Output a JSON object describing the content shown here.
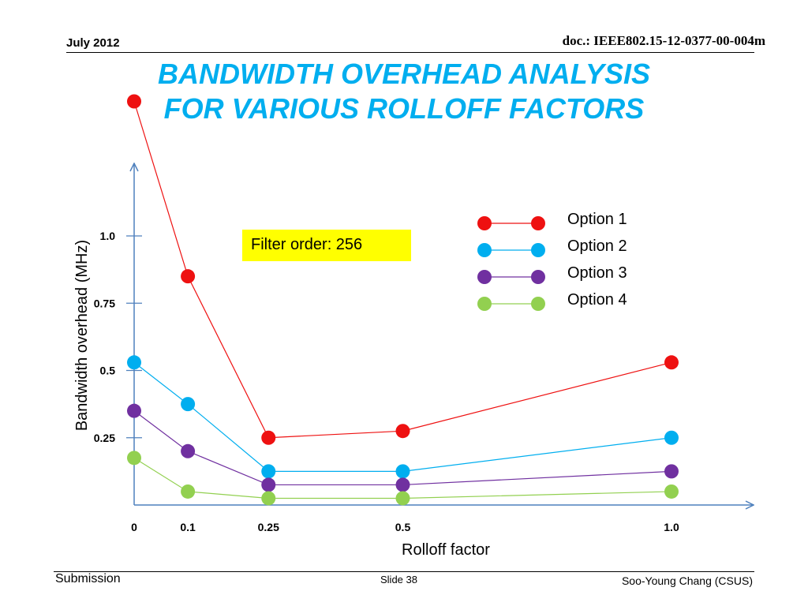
{
  "header": {
    "date": "July 2012",
    "doc_id": "doc.: IEEE802.15-12-0377-00-004m"
  },
  "title": {
    "line1": "BANDWIDTH OVERHEAD ANALYSIS",
    "line2": "FOR VARIOUS ROLLOFF FACTORS",
    "color": "#00AEEF"
  },
  "annotation": {
    "text": "Filter order: 256",
    "background": "#FFFF00"
  },
  "footer": {
    "left": "Submission",
    "center": "Slide 38",
    "right": "Soo-Young Chang (CSUS)"
  },
  "chart_data": {
    "type": "line",
    "xlabel": "Rolloff factor",
    "ylabel": "Bandwidth overhead (MHz)",
    "x": [
      0,
      0.1,
      0.25,
      0.5,
      1.0
    ],
    "x_tick_labels": [
      "0",
      "0.1",
      "0.25",
      "0.5",
      "1.0"
    ],
    "y_ticks": [
      0.25,
      0.5,
      0.75,
      1.0
    ],
    "y_tick_labels": [
      "0.25",
      "0.5",
      "0.75",
      "1.0"
    ],
    "xlim": [
      0,
      1.15
    ],
    "ylim": [
      0,
      1.35
    ],
    "grid": false,
    "legend_position": "top-right",
    "series": [
      {
        "name": "Option 1",
        "color": "#EE1111",
        "values": [
          1.5,
          0.85,
          0.25,
          0.275,
          0.53
        ]
      },
      {
        "name": "Option 2",
        "color": "#00AEEF",
        "values": [
          0.53,
          0.375,
          0.125,
          0.125,
          0.25
        ]
      },
      {
        "name": "Option 3",
        "color": "#7030A0",
        "values": [
          0.35,
          0.2,
          0.075,
          0.075,
          0.125
        ]
      },
      {
        "name": "Option 4",
        "color": "#92D050",
        "values": [
          0.175,
          0.05,
          0.025,
          0.025,
          0.05
        ]
      }
    ]
  }
}
